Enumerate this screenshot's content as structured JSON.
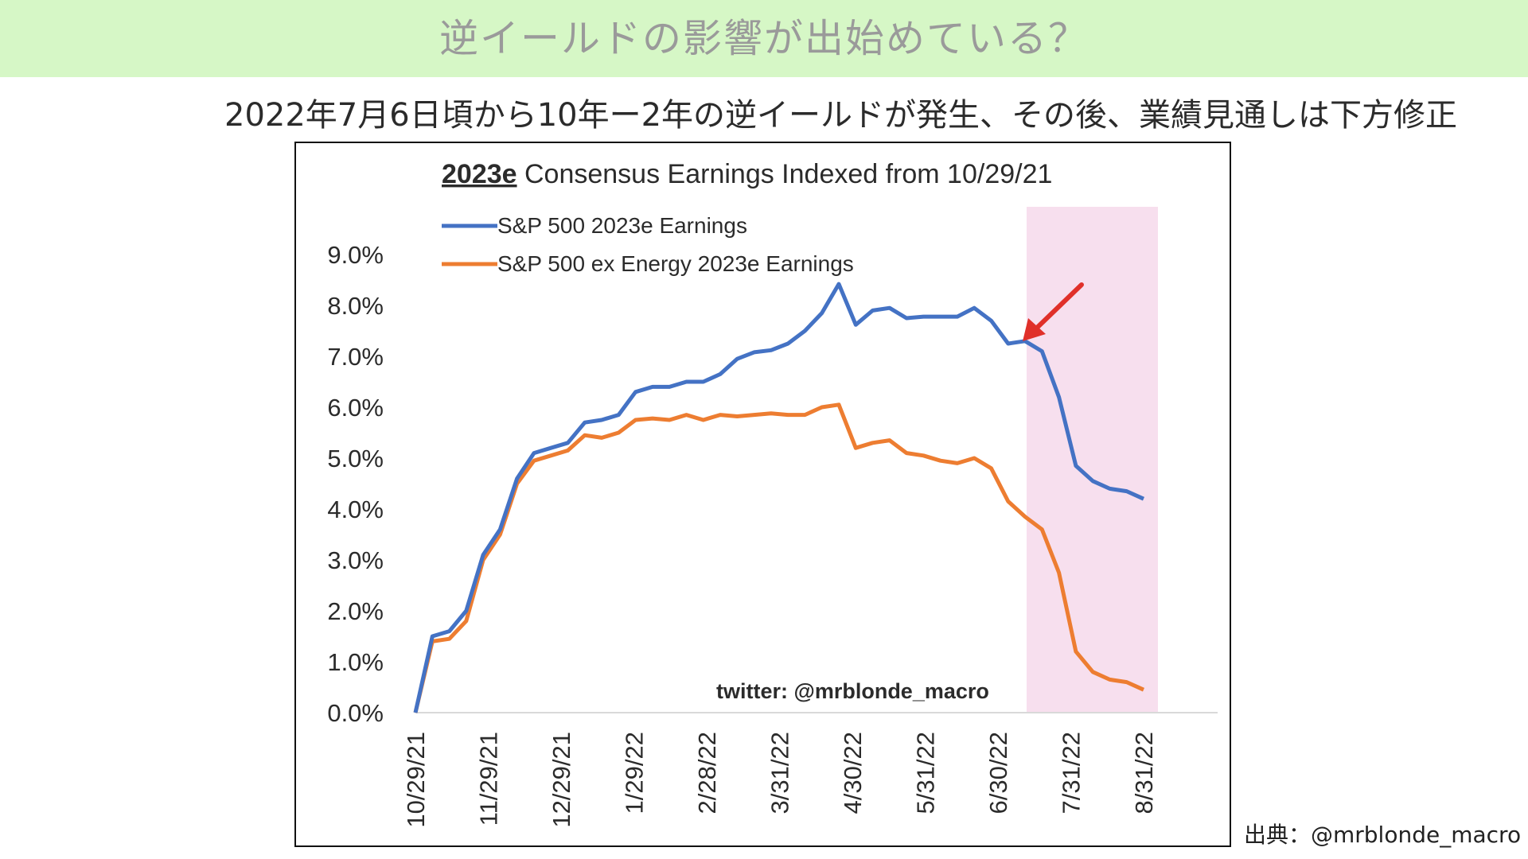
{
  "header": {
    "title": "逆イールドの影響が出始めている？"
  },
  "subtitle": "2022年7月6日頃から10年ー2年の逆イールドが発生、その後、業績見通しは下方修正",
  "source": "出典：@mrblonde_macro",
  "colors": {
    "header_band": "#d6f7c6",
    "sp500": "#4472c4",
    "sp500_ex_energy": "#ed7d31",
    "highlight": "#f7dfee",
    "arrow": "#e0302a"
  },
  "chart_data": {
    "type": "line",
    "title_bold": "2023e",
    "title_rest": " Consensus Earnings Indexed from 10/29/21",
    "watermark": "twitter: @mrblonde_macro",
    "x_tick_labels": [
      "10/29/21",
      "11/29/21",
      "12/29/21",
      "1/29/22",
      "2/28/22",
      "3/31/22",
      "4/30/22",
      "5/31/22",
      "6/30/22",
      "7/31/22",
      "8/31/22"
    ],
    "y_tick_labels": [
      "0.0%",
      "1.0%",
      "2.0%",
      "3.0%",
      "4.0%",
      "5.0%",
      "6.0%",
      "7.0%",
      "8.0%",
      "9.0%"
    ],
    "ylim": [
      0,
      9
    ],
    "legend_position": "top-left",
    "highlight_range_label": "inversion period (shaded)",
    "series": [
      {
        "name": "S&P 500 2023e Earnings",
        "values": [
          0.0,
          1.5,
          1.6,
          2.0,
          3.1,
          3.6,
          4.6,
          5.1,
          5.2,
          5.3,
          5.7,
          5.75,
          5.85,
          6.3,
          6.4,
          6.4,
          6.5,
          6.5,
          6.65,
          6.95,
          7.08,
          7.12,
          7.25,
          7.5,
          7.85,
          8.42,
          7.62,
          7.9,
          7.95,
          7.75,
          7.78,
          7.78,
          7.78,
          7.95,
          7.7,
          7.25,
          7.3,
          7.1,
          6.2,
          4.85,
          4.55,
          4.4,
          4.35,
          4.2
        ]
      },
      {
        "name": "S&P 500 ex Energy 2023e Earnings",
        "values": [
          0.0,
          1.4,
          1.45,
          1.8,
          3.0,
          3.5,
          4.5,
          4.95,
          5.05,
          5.15,
          5.45,
          5.4,
          5.5,
          5.75,
          5.78,
          5.75,
          5.85,
          5.75,
          5.85,
          5.82,
          5.85,
          5.88,
          5.85,
          5.85,
          6.0,
          6.05,
          5.2,
          5.3,
          5.35,
          5.1,
          5.05,
          4.95,
          4.9,
          5.0,
          4.8,
          4.15,
          3.85,
          3.6,
          2.75,
          1.2,
          0.8,
          0.65,
          0.6,
          0.45
        ]
      }
    ]
  }
}
